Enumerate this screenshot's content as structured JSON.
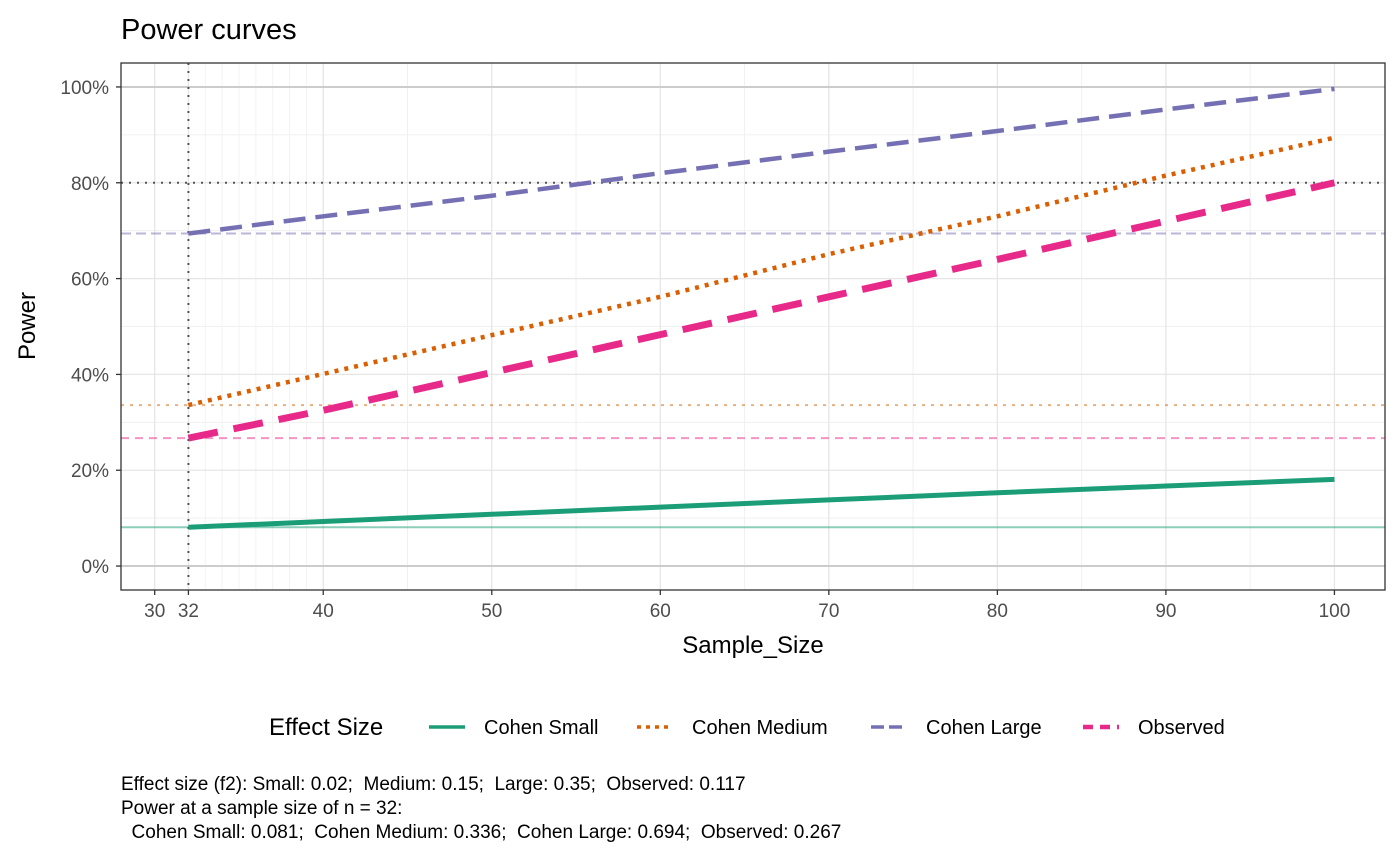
{
  "chart_data": {
    "type": "line",
    "title": "Power curves",
    "xlabel": "Sample_Size",
    "ylabel": "Power",
    "xlim": [
      28,
      103
    ],
    "ylim": [
      -0.05,
      1.05
    ],
    "x_ticks": [
      30,
      32,
      40,
      50,
      60,
      70,
      80,
      90,
      100
    ],
    "y_ticks": [
      0,
      0.2,
      0.4,
      0.6,
      0.8,
      1.0
    ],
    "y_tick_labels": [
      "0%",
      "20%",
      "40%",
      "60%",
      "80%",
      "100%"
    ],
    "grid": true,
    "target_power": 0.8,
    "observed_n": 32,
    "legend": {
      "title": "Effect Size",
      "position": "bottom"
    },
    "series": [
      {
        "name": "Cohen Small",
        "color": "#1B9E77",
        "dash": "solid",
        "x": [
          32,
          40,
          50,
          60,
          70,
          80,
          90,
          100
        ],
        "values": [
          0.081,
          0.093,
          0.108,
          0.123,
          0.138,
          0.153,
          0.167,
          0.181
        ]
      },
      {
        "name": "Cohen Medium",
        "color": "#D95F02",
        "dash": "dotted",
        "x": [
          32,
          40,
          50,
          60,
          70,
          80,
          90,
          100
        ],
        "values": [
          0.336,
          0.401,
          0.482,
          0.562,
          0.651,
          0.73,
          0.815,
          0.894
        ]
      },
      {
        "name": "Cohen Large",
        "color": "#7570B3",
        "dash": "longdash",
        "x": [
          32,
          40,
          50,
          60,
          70,
          80,
          90,
          100
        ],
        "values": [
          0.694,
          0.73,
          0.773,
          0.82,
          0.865,
          0.908,
          0.953,
          0.996
        ]
      },
      {
        "name": "Observed",
        "color": "#E7298A",
        "dash": "dashed",
        "x": [
          32,
          40,
          50,
          60,
          70,
          80,
          90,
          100
        ],
        "values": [
          0.267,
          0.325,
          0.404,
          0.483,
          0.562,
          0.64,
          0.72,
          0.8
        ]
      }
    ]
  },
  "caption": {
    "line1": "Effect size (f2): Small: 0.02;  Medium: 0.15;  Large: 0.35;  Observed: 0.117",
    "line2": "Power at a sample size of n = 32:",
    "line3": "  Cohen Small: 0.081;  Cohen Medium: 0.336;  Cohen Large: 0.694;  Observed: 0.267"
  }
}
